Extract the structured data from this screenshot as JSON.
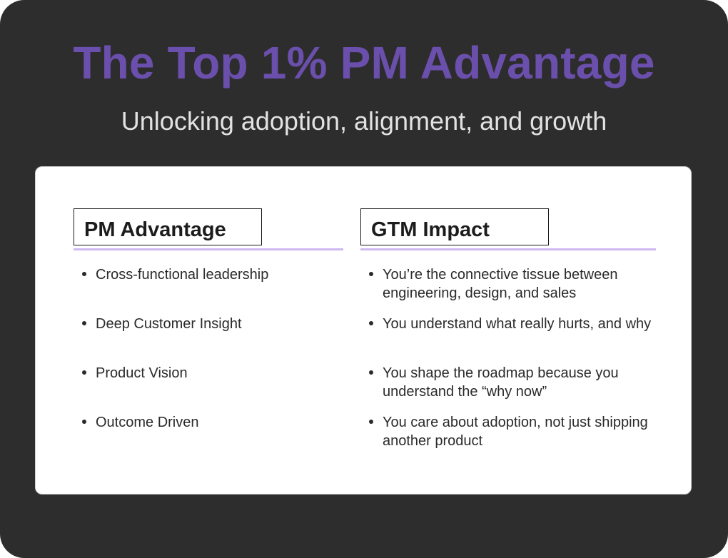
{
  "header": {
    "title": "The Top 1% PM Advantage",
    "subtitle": "Unlocking adoption, alignment, and growth"
  },
  "columns": [
    {
      "heading": "PM Advantage",
      "items": [
        "Cross-functional leadership",
        "Deep Customer Insight",
        "Product Vision",
        "Outcome Driven"
      ]
    },
    {
      "heading": "GTM Impact",
      "items": [
        "You’re the connective tissue between engineering, design, and sales",
        "You understand what really hurts, and why",
        "You shape the roadmap because you understand the “why now”",
        "You care about adoption, not just shipping another product"
      ]
    }
  ],
  "colors": {
    "background": "#2d2d2d",
    "title": "#6b4fac",
    "subtitle": "#e2e2e2",
    "card": "#ffffff",
    "heading_underline": "#cfb8f2"
  }
}
